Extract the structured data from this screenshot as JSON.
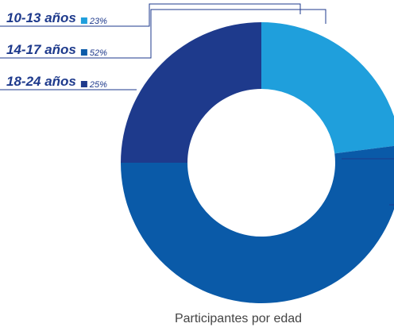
{
  "chart_data": {
    "type": "donut",
    "title": "Participantes por edad",
    "categories": [
      "10-13 años",
      "14-17 años",
      "18-24 años"
    ],
    "values": [
      23,
      52,
      25
    ],
    "value_labels": [
      "23%",
      "52%",
      "25%"
    ],
    "colors": [
      "#1f9fdc",
      "#0a5aa8",
      "#1e3a8c"
    ]
  }
}
